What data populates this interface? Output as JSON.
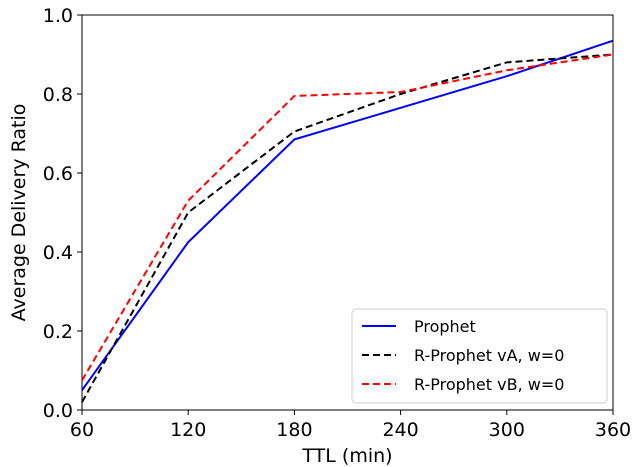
{
  "chart_data": {
    "type": "line",
    "title": "",
    "xlabel": "TTL (min)",
    "ylabel": "Average Delivery Ratio",
    "x": [
      60,
      120,
      180,
      240,
      300,
      360
    ],
    "xticks": [
      "60",
      "120",
      "180",
      "240",
      "300",
      "360"
    ],
    "yticks": [
      "0.0",
      "0.2",
      "0.4",
      "0.6",
      "0.8",
      "1.0"
    ],
    "xlim": [
      60,
      360
    ],
    "ylim": [
      0,
      1.0
    ],
    "grid": false,
    "legend_position": "bottom-right",
    "series": [
      {
        "name": "Prophet",
        "color": "#0000ff",
        "dash": "solid",
        "values": [
          0.05,
          0.425,
          0.685,
          0.765,
          0.845,
          0.935
        ]
      },
      {
        "name": "R-Prophet vA, w=0",
        "color": "#000000",
        "dash": "dashed",
        "values": [
          0.02,
          0.5,
          0.705,
          0.8,
          0.88,
          0.9
        ]
      },
      {
        "name": "R-Prophet vB, w=0",
        "color": "#ff0000",
        "dash": "dashed",
        "values": [
          0.075,
          0.53,
          0.795,
          0.805,
          0.86,
          0.9
        ]
      }
    ]
  }
}
